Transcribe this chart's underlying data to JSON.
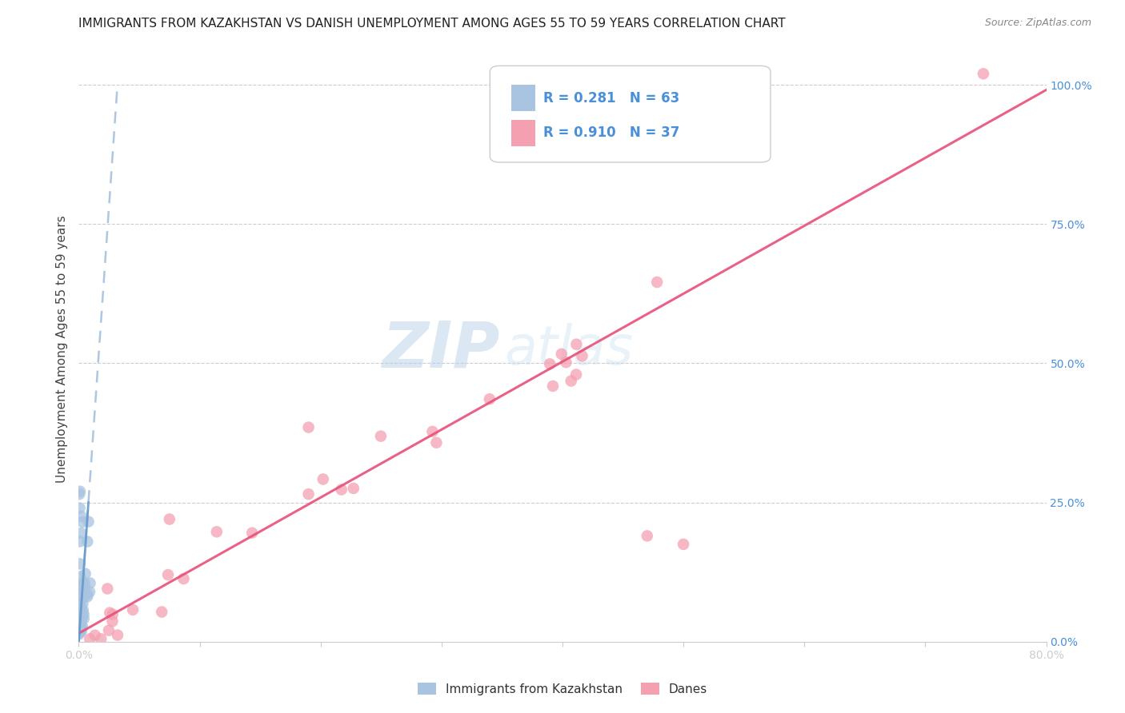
{
  "title": "IMMIGRANTS FROM KAZAKHSTAN VS DANISH UNEMPLOYMENT AMONG AGES 55 TO 59 YEARS CORRELATION CHART",
  "source": "Source: ZipAtlas.com",
  "ylabel": "Unemployment Among Ages 55 to 59 years",
  "blue_R": 0.281,
  "blue_N": 63,
  "pink_R": 0.91,
  "pink_N": 37,
  "blue_color": "#a8c4e0",
  "pink_color": "#f4a0b0",
  "blue_line_color": "#6699cc",
  "pink_line_color": "#e8507a",
  "xlim": [
    0,
    0.8
  ],
  "ylim": [
    0,
    1.05
  ],
  "watermark_zip": "ZIP",
  "watermark_atlas": "atlas",
  "legend_label1": "Immigrants from Kazakhstan",
  "legend_label2": "Danes",
  "background_color": "#ffffff",
  "grid_color": "#cccccc",
  "title_fontsize": 11,
  "axis_label_fontsize": 11,
  "tick_fontsize": 10,
  "right_tick_color": "#4a90d9",
  "label_color": "#4a90d9",
  "title_color": "#222222",
  "source_color": "#888888",
  "ylabel_color": "#444444"
}
